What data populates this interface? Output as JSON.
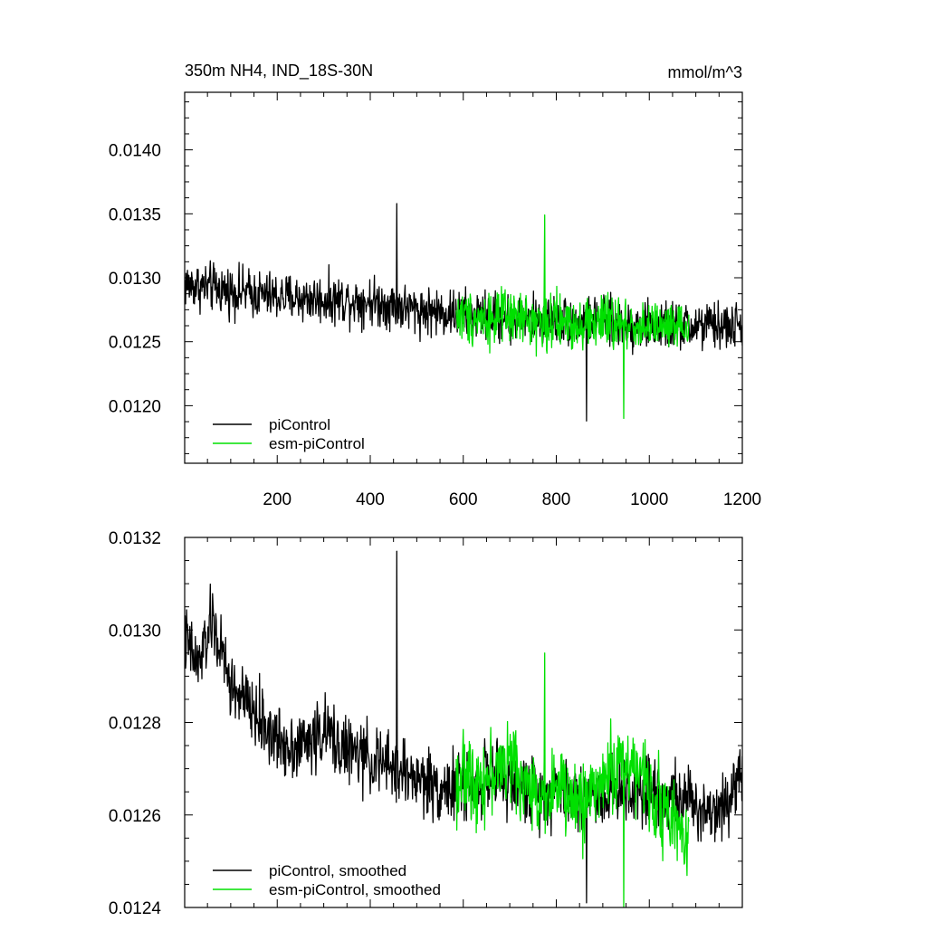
{
  "chart_data": [
    {
      "type": "line",
      "title": "350m NH4, IND_18S-30N",
      "units": "mmol/m^3",
      "x_range": [
        1,
        1200
      ],
      "ylim": [
        0.01155,
        0.01445
      ],
      "x_ticks": [
        200,
        400,
        600,
        800,
        1000,
        1200
      ],
      "x_tick_labels": [
        "200",
        "400",
        "600",
        "800",
        "1000",
        "1200"
      ],
      "y_ticks": [
        0.012,
        0.0125,
        0.013,
        0.0135,
        0.014
      ],
      "y_tick_labels": [
        "0.0120",
        "0.0125",
        "0.0130",
        "0.0135",
        "0.0140"
      ],
      "legend": {
        "placement": "bottom-left",
        "entries": [
          "piControl",
          "esm-piControl"
        ]
      },
      "series": [
        {
          "name": "piControl",
          "color": "#000000",
          "x_range": [
            1,
            1200
          ],
          "anchor_x": [
            1,
            100,
            200,
            300,
            400,
            500,
            580,
            700,
            800,
            900,
            1000,
            1100,
            1200
          ],
          "anchor_y": [
            0.01295,
            0.0129,
            0.01285,
            0.01283,
            0.01282,
            0.01275,
            0.01272,
            0.01268,
            0.01267,
            0.01265,
            0.01262,
            0.01262,
            0.01262
          ],
          "noise_amplitude": 0.00028,
          "sample_extremes": {
            "max": 0.01358,
            "min": 0.01188
          }
        },
        {
          "name": "esm-piControl",
          "color": "#00e000",
          "x_range": [
            585,
            1085
          ],
          "anchor_x": [
            585,
            700,
            800,
            900,
            1000,
            1085
          ],
          "anchor_y": [
            0.0127,
            0.01268,
            0.01265,
            0.01265,
            0.01262,
            0.01258
          ],
          "noise_amplitude": 0.00032,
          "sample_extremes": {
            "max": 0.01349,
            "min": 0.0119
          }
        }
      ]
    },
    {
      "type": "line",
      "x_range": [
        1,
        1200
      ],
      "ylim": [
        0.0124,
        0.0132
      ],
      "y_ticks": [
        0.0124,
        0.0126,
        0.0128,
        0.013,
        0.0132
      ],
      "y_tick_labels": [
        "0.0124",
        "0.0126",
        "0.0128",
        "0.0130",
        "0.0132"
      ],
      "legend": {
        "placement": "bottom-left",
        "entries": [
          "piControl, smoothed",
          "esm-piControl, smoothed"
        ]
      },
      "series": [
        {
          "name": "piControl, smoothed",
          "color": "#000000",
          "x_range": [
            1,
            1200
          ],
          "anchor_x": [
            1,
            30,
            60,
            100,
            150,
            200,
            250,
            300,
            350,
            400,
            450,
            500,
            550,
            600,
            650,
            700,
            750,
            800,
            850,
            900,
            950,
            1000,
            1050,
            1100,
            1150,
            1200
          ],
          "anchor_y": [
            0.01298,
            0.01292,
            0.01302,
            0.01288,
            0.01282,
            0.01276,
            0.01275,
            0.01278,
            0.01274,
            0.01272,
            0.0127,
            0.01268,
            0.01266,
            0.01266,
            0.01268,
            0.01267,
            0.01265,
            0.01266,
            0.01264,
            0.01265,
            0.01266,
            0.01266,
            0.01264,
            0.01262,
            0.01261,
            0.0127
          ],
          "noise_amplitude": 0.00011,
          "sample_extremes": {
            "max": 0.01317,
            "min": 0.01241
          }
        },
        {
          "name": "esm-piControl, smoothed",
          "color": "#00e000",
          "x_range": [
            585,
            1085
          ],
          "anchor_x": [
            585,
            650,
            700,
            750,
            800,
            850,
            900,
            950,
            1000,
            1050,
            1085
          ],
          "anchor_y": [
            0.01268,
            0.01268,
            0.01272,
            0.01264,
            0.01266,
            0.01262,
            0.01268,
            0.01272,
            0.01266,
            0.01258,
            0.01256
          ],
          "noise_amplitude": 0.00013,
          "sample_extremes": {
            "max": 0.01295,
            "min": 0.0124
          }
        }
      ]
    }
  ]
}
